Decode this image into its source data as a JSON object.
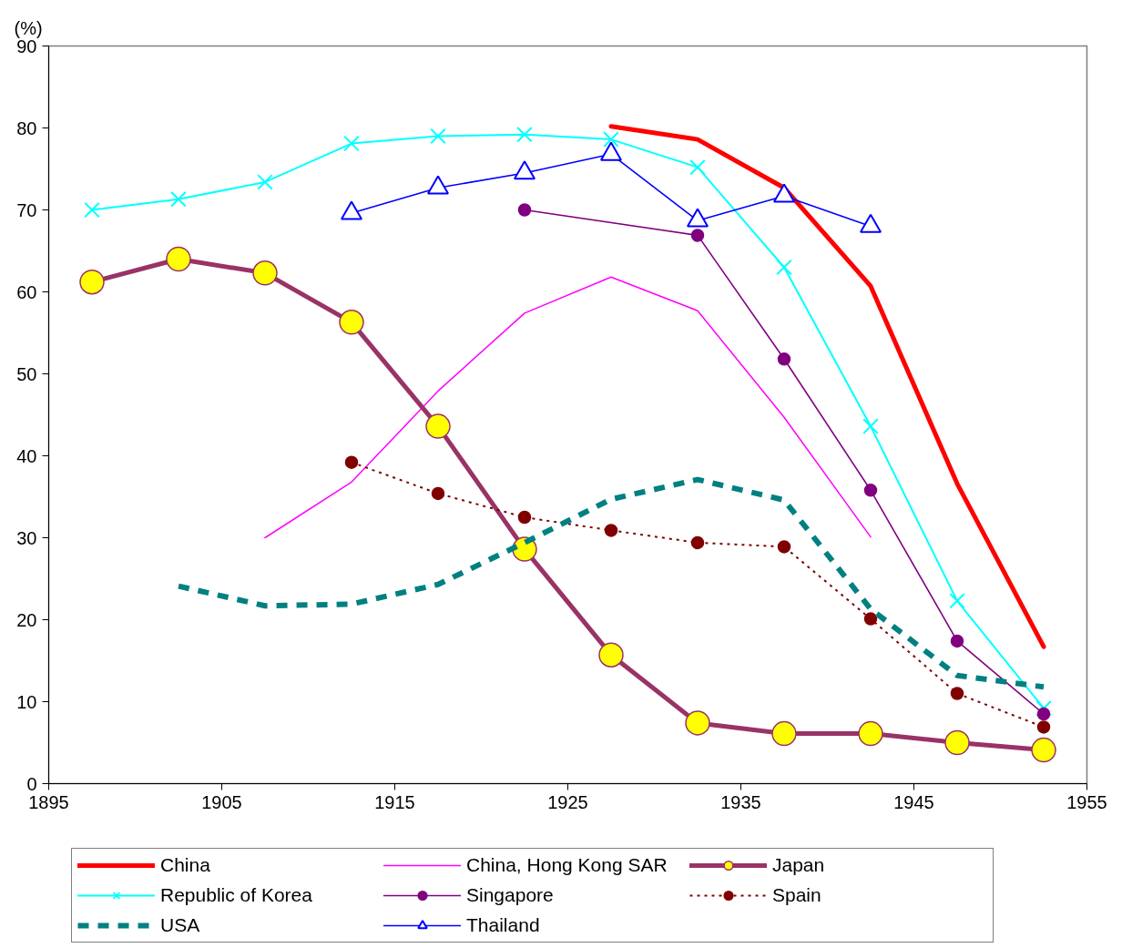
{
  "chart_data": {
    "type": "line",
    "ylabel": "(%)",
    "x": [
      1897.5,
      1902.5,
      1907.5,
      1912.5,
      1917.5,
      1922.5,
      1927.5,
      1932.5,
      1937.5,
      1942.5,
      1947.5,
      1952.5
    ],
    "xlim": [
      1895,
      1955
    ],
    "xticks": [
      1895,
      1905,
      1915,
      1925,
      1935,
      1945,
      1955
    ],
    "ylim": [
      0,
      90
    ],
    "yticks": [
      0,
      10,
      20,
      30,
      40,
      50,
      60,
      70,
      80,
      90
    ],
    "legend": "bottom",
    "series": [
      {
        "name": "China",
        "color": "#ff0000",
        "marker": "none",
        "line_style": "solid",
        "values": [
          null,
          null,
          null,
          null,
          null,
          null,
          80.2,
          78.6,
          72.7,
          60.7,
          36.6,
          16.7
        ]
      },
      {
        "name": "China, Hong Kong SAR",
        "color": "#ff00ff",
        "marker": "none",
        "line_style": "solid",
        "values": [
          null,
          null,
          30.0,
          36.8,
          47.9,
          57.4,
          61.8,
          57.7,
          44.7,
          30.1,
          null,
          null
        ]
      },
      {
        "name": "Japan",
        "color": "#993366",
        "marker": "circle",
        "line_style": "solid",
        "values": [
          61.2,
          64.0,
          62.3,
          56.3,
          43.6,
          28.6,
          15.7,
          7.4,
          6.1,
          6.1,
          5.0,
          4.1
        ],
        "colors": [
          "#ffff00",
          "#ffff00",
          "#ffff00",
          "#ffff00",
          "#ffff00",
          "#ffff00",
          "#ffff00",
          "#ffff00",
          "#ffff00",
          "#ffff00",
          "#ffff00",
          "#ffff00"
        ]
      },
      {
        "name": "Republic of Korea",
        "color": "#00ffff",
        "marker": "cross",
        "line_style": "solid",
        "values": [
          70.0,
          71.3,
          73.4,
          78.1,
          79.0,
          79.2,
          78.6,
          75.2,
          63.0,
          43.6,
          22.3,
          9.2
        ]
      },
      {
        "name": "Singapore",
        "color": "#800080",
        "marker": "circle",
        "line_style": "solid",
        "x": [
          1922.5,
          1932.5,
          1937.5,
          1942.5,
          1947.5,
          1952.5
        ],
        "values": [
          70.0,
          66.9,
          51.8,
          35.8,
          17.4,
          8.5
        ]
      },
      {
        "name": "Spain",
        "color": "#800000",
        "marker": "circle",
        "line_style": "dotted",
        "values": [
          null,
          null,
          null,
          39.2,
          35.4,
          32.5,
          30.9,
          29.4,
          28.9,
          20.1,
          11.0,
          6.9
        ]
      },
      {
        "name": "USA",
        "color": "#008080",
        "marker": "none",
        "line_style": "dashed",
        "values": [
          null,
          24.1,
          21.7,
          21.9,
          24.3,
          29.4,
          34.7,
          37.1,
          34.6,
          21.3,
          13.2,
          11.8
        ]
      },
      {
        "name": "Thailand",
        "color": "#0000ff",
        "marker": "triangle",
        "line_style": "solid",
        "values": [
          null,
          null,
          null,
          69.6,
          72.7,
          74.5,
          76.8,
          68.7,
          71.7,
          68.0,
          null,
          null
        ],
        "colors": [
          "#ffffff",
          "#ffffff",
          "#ffffff",
          "#ffffff",
          "#ffffff",
          "#ffffff",
          "#ffffff",
          "#ffffff",
          "#ffffff",
          "#ffffff",
          "#ffffff",
          "#ffffff"
        ]
      }
    ]
  }
}
